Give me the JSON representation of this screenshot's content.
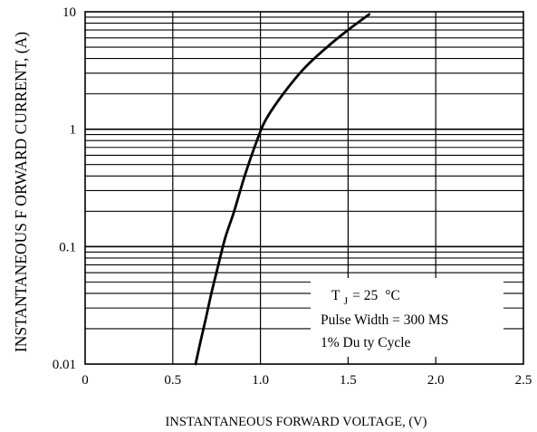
{
  "chart_data": {
    "type": "line",
    "title": "",
    "xlabel": "INSTANTANEOUS FORWARD VOLTAGE, (V)",
    "ylabel": "INSTANTANEOUS F ORWARD CURRENT,  (A)",
    "xscale": "linear",
    "yscale": "log",
    "xlim": [
      0,
      2.5
    ],
    "ylim": [
      0.01,
      10
    ],
    "grid": true,
    "x_ticks": [
      0,
      0.5,
      1.0,
      1.5,
      2.0,
      2.5
    ],
    "x_tick_labels": [
      "0",
      "0.5",
      "1.0",
      "1.5",
      "2.0",
      "2.5"
    ],
    "y_ticks": [
      0.01,
      0.1,
      1,
      10
    ],
    "y_tick_labels": [
      "0.01",
      "0.1",
      "1",
      "10"
    ],
    "series": [
      {
        "color": "#000000",
        "x": [
          0.63,
          0.66,
          0.69,
          0.72,
          0.76,
          0.8,
          0.85,
          0.91,
          0.98,
          1.03,
          1.13,
          1.25,
          1.38,
          1.5,
          1.62
        ],
        "y": [
          0.01,
          0.016,
          0.025,
          0.04,
          0.07,
          0.12,
          0.2,
          0.4,
          0.8,
          1.2,
          2.0,
          3.3,
          5.0,
          7.0,
          9.5
        ]
      }
    ],
    "legend": {
      "position": "bottom-right",
      "line1_main": "T",
      "line1_sub": "J",
      "line1_rest": "= 25",
      "line1_unit": "°C",
      "line2": "Pulse Width = 300   MS",
      "line3": "1% Du ty Cycle"
    }
  }
}
